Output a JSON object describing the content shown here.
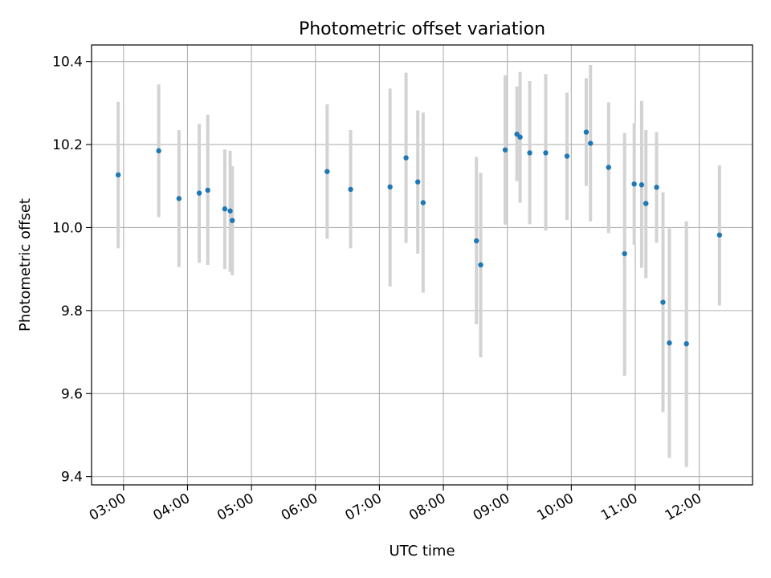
{
  "chart_data": {
    "type": "scatter",
    "title": "Photometric offset variation",
    "xlabel": "UTC time",
    "ylabel": "Photometric offset",
    "xlim": [
      "02:30",
      "12:50"
    ],
    "ylim": [
      9.38,
      10.44
    ],
    "x_ticks": [
      "03:00",
      "04:00",
      "05:00",
      "06:00",
      "07:00",
      "08:00",
      "09:00",
      "10:00",
      "11:00",
      "12:00"
    ],
    "y_ticks": [
      "9.4",
      "9.6",
      "9.8",
      "10.0",
      "10.2",
      "10.4"
    ],
    "grid": true,
    "point_color": "#1f77b4",
    "errorbar_color": "#d3d3d3",
    "points": [
      {
        "x": "02:55",
        "y": 10.127,
        "lo": 9.95,
        "hi": 10.303
      },
      {
        "x": "03:33",
        "y": 10.185,
        "lo": 10.025,
        "hi": 10.345
      },
      {
        "x": "03:52",
        "y": 10.07,
        "lo": 9.905,
        "hi": 10.235
      },
      {
        "x": "04:11",
        "y": 10.083,
        "lo": 9.915,
        "hi": 10.25
      },
      {
        "x": "04:19",
        "y": 10.09,
        "lo": 9.91,
        "hi": 10.272
      },
      {
        "x": "04:35",
        "y": 10.045,
        "lo": 9.9,
        "hi": 10.188
      },
      {
        "x": "04:40",
        "y": 10.04,
        "lo": 9.893,
        "hi": 10.185
      },
      {
        "x": "04:42",
        "y": 10.017,
        "lo": 9.885,
        "hi": 10.148
      },
      {
        "x": "06:11",
        "y": 10.135,
        "lo": 9.973,
        "hi": 10.297
      },
      {
        "x": "06:33",
        "y": 10.092,
        "lo": 9.95,
        "hi": 10.235
      },
      {
        "x": "07:10",
        "y": 10.098,
        "lo": 9.858,
        "hi": 10.335
      },
      {
        "x": "07:25",
        "y": 10.168,
        "lo": 9.963,
        "hi": 10.373
      },
      {
        "x": "07:36",
        "y": 10.11,
        "lo": 9.937,
        "hi": 10.282
      },
      {
        "x": "07:41",
        "y": 10.06,
        "lo": 9.843,
        "hi": 10.277
      },
      {
        "x": "08:31",
        "y": 9.968,
        "lo": 9.767,
        "hi": 10.17
      },
      {
        "x": "08:35",
        "y": 9.91,
        "lo": 9.687,
        "hi": 10.132
      },
      {
        "x": "08:58",
        "y": 10.187,
        "lo": 10.007,
        "hi": 10.367
      },
      {
        "x": "09:09",
        "y": 10.225,
        "lo": 10.112,
        "hi": 10.34
      },
      {
        "x": "09:12",
        "y": 10.218,
        "lo": 10.06,
        "hi": 10.375
      },
      {
        "x": "09:21",
        "y": 10.18,
        "lo": 10.008,
        "hi": 10.353
      },
      {
        "x": "09:36",
        "y": 10.18,
        "lo": 9.993,
        "hi": 10.37
      },
      {
        "x": "09:56",
        "y": 10.172,
        "lo": 10.018,
        "hi": 10.325
      },
      {
        "x": "10:14",
        "y": 10.23,
        "lo": 10.1,
        "hi": 10.36
      },
      {
        "x": "10:18",
        "y": 10.203,
        "lo": 10.015,
        "hi": 10.392
      },
      {
        "x": "10:35",
        "y": 10.145,
        "lo": 9.987,
        "hi": 10.302
      },
      {
        "x": "10:50",
        "y": 9.937,
        "lo": 9.643,
        "hi": 10.228
      },
      {
        "x": "10:59",
        "y": 10.105,
        "lo": 9.958,
        "hi": 10.252
      },
      {
        "x": "11:06",
        "y": 10.103,
        "lo": 9.903,
        "hi": 10.305
      },
      {
        "x": "11:10",
        "y": 10.058,
        "lo": 9.878,
        "hi": 10.235
      },
      {
        "x": "11:20",
        "y": 10.097,
        "lo": 9.963,
        "hi": 10.23
      },
      {
        "x": "11:26",
        "y": 9.82,
        "lo": 9.555,
        "hi": 10.085
      },
      {
        "x": "11:32",
        "y": 9.722,
        "lo": 9.445,
        "hi": 9.998
      },
      {
        "x": "11:48",
        "y": 9.72,
        "lo": 9.423,
        "hi": 10.015
      },
      {
        "x": "12:19",
        "y": 9.982,
        "lo": 9.812,
        "hi": 10.15
      }
    ]
  }
}
